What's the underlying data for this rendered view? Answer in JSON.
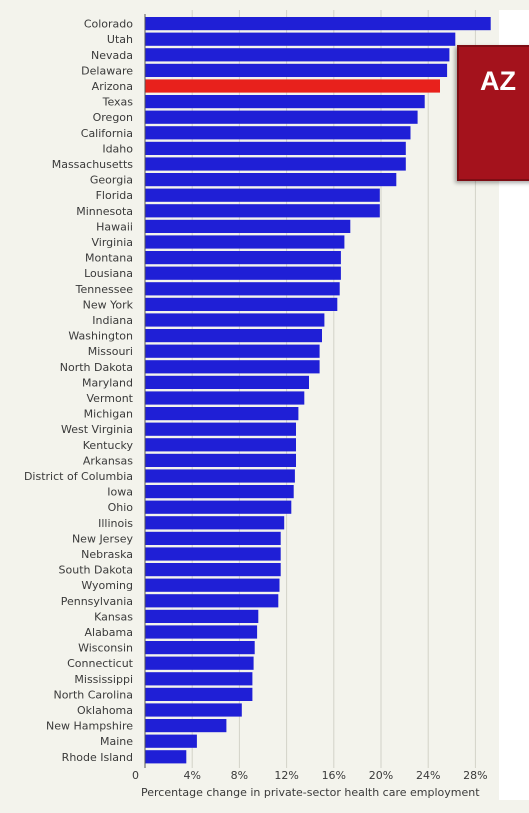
{
  "callout": {
    "text": "AZ"
  },
  "colors": {
    "bar": "#1f1fd6",
    "highlight": "#e8211c",
    "callout_bg": "#a4121c",
    "grid": "#d2d2c8"
  },
  "chart_data": {
    "type": "bar",
    "orientation": "horizontal",
    "highlight": "Arizona",
    "categories": [
      "Colorado",
      "Utah",
      "Nevada",
      "Delaware",
      "Arizona",
      "Texas",
      "Oregon",
      "California",
      "Idaho",
      "Massachusetts",
      "Georgia",
      "Florida",
      "Minnesota",
      "Hawaii",
      "Virginia",
      "Montana",
      "Lousiana",
      "Tennessee",
      "New York",
      "Indiana",
      "Washington",
      "Missouri",
      "North Dakota",
      "Maryland",
      "Vermont",
      "Michigan",
      "West Virginia",
      "Kentucky",
      "Arkansas",
      "District of Columbia",
      "Iowa",
      "Ohio",
      "Illinois",
      "New Jersey",
      "Nebraska",
      "South Dakota",
      "Wyoming",
      "Pennsylvania",
      "Kansas",
      "Alabama",
      "Wisconsin",
      "Connecticut",
      "Mississippi",
      "North Carolina",
      "Oklahoma",
      "New Hampshire",
      "Maine",
      "Rhode Island"
    ],
    "values": [
      29.3,
      26.3,
      25.8,
      25.6,
      25.0,
      23.7,
      23.1,
      22.5,
      22.1,
      22.1,
      21.3,
      19.9,
      19.9,
      17.4,
      16.9,
      16.6,
      16.6,
      16.5,
      16.3,
      15.2,
      15.0,
      14.8,
      14.8,
      13.9,
      13.5,
      13.0,
      12.8,
      12.8,
      12.8,
      12.7,
      12.6,
      12.4,
      11.8,
      11.5,
      11.5,
      11.5,
      11.4,
      11.3,
      9.6,
      9.5,
      9.3,
      9.2,
      9.1,
      9.1,
      8.2,
      6.9,
      4.4,
      3.5
    ],
    "xticks": [
      "0",
      "4%",
      "8%",
      "12%",
      "16%",
      "20%",
      "24%",
      "28%"
    ],
    "xlim": [
      0,
      30
    ],
    "xlabel": "Percentage change in private-sector health care employment",
    "grid": true
  }
}
